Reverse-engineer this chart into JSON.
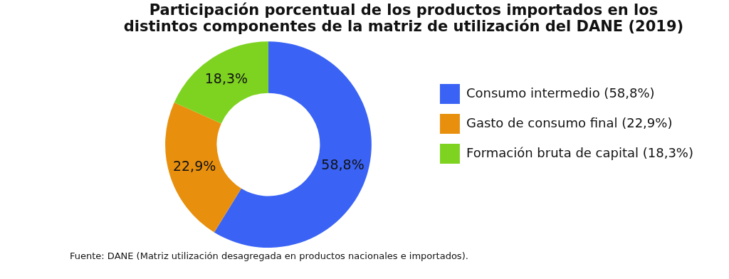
{
  "chart_data": {
    "type": "donut",
    "title": "Participación porcentual de los productos importados en los distintos componentes de la matriz de utilización del DANE (2019)",
    "categories": [
      "Consumo intermedio (58,8%)",
      "Gasto de consumo final (22,9%)",
      "Formación bruta de capital (18,3%)"
    ],
    "values": [
      58.8,
      22.9,
      18.3
    ],
    "value_labels": [
      "58,8%",
      "22,9%",
      "18,3%"
    ],
    "colors": [
      "#3a63f5",
      "#e8900e",
      "#7ed321"
    ],
    "legend": "right",
    "annotations": [
      "Fuente: DANE (Matriz utilización desagregada en productos nacionales e importados)."
    ]
  }
}
